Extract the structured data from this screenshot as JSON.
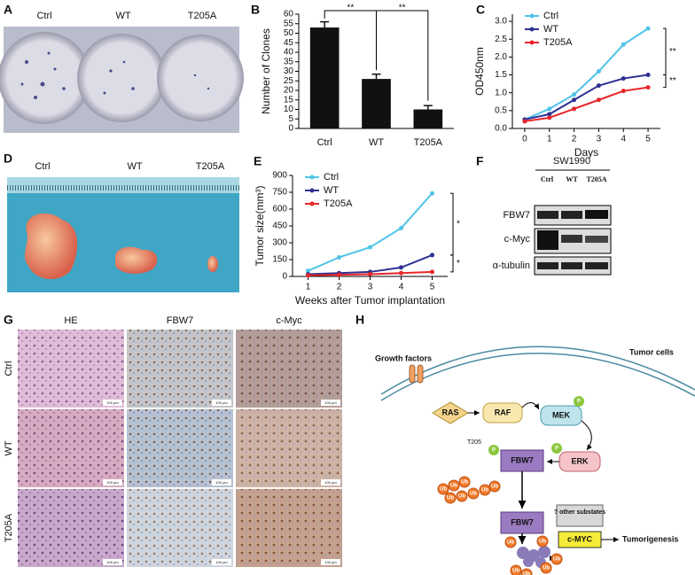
{
  "panels": [
    "A",
    "B",
    "C",
    "D",
    "E",
    "F",
    "G",
    "H"
  ],
  "photos": {
    "clonogenic": {
      "labels": [
        "Ctrl",
        "WT",
        "T205A"
      ]
    },
    "tumors": {
      "labels": [
        "Ctrl",
        "WT",
        "T205A"
      ]
    }
  },
  "chart_data": [
    {
      "type": "bar",
      "y_label": "Number of Clones",
      "categories": [
        "Ctrl",
        "WT",
        "T205A"
      ],
      "values": [
        53,
        26,
        10
      ],
      "errors": [
        3,
        2.5,
        2
      ],
      "color": "#111111",
      "ylim": [
        0,
        60
      ],
      "yticks": [
        0,
        5,
        10,
        15,
        20,
        25,
        30,
        35,
        40,
        45,
        50,
        55,
        60
      ],
      "annotations": [
        "**",
        "**"
      ]
    },
    {
      "type": "line",
      "y_label": "OD450nm",
      "x_label": "Days",
      "x": [
        0,
        1,
        2,
        3,
        4,
        5
      ],
      "xlim": [
        -0.5,
        5.5
      ],
      "xticks": [
        0,
        1,
        2,
        3,
        4,
        5
      ],
      "ylim": [
        0,
        3.2
      ],
      "yticks": [
        {
          "value": 0,
          "label": "0.0"
        },
        0.5,
        {
          "value": 1,
          "label": "1.0"
        },
        1.5,
        {
          "value": 2,
          "label": "2.0"
        },
        2.5,
        {
          "value": 3,
          "label": "3.0"
        }
      ],
      "series": [
        {
          "name": "Ctrl",
          "color": "#4fc3e8",
          "values": [
            0.25,
            0.55,
            0.95,
            1.6,
            2.35,
            2.8
          ]
        },
        {
          "name": "WT",
          "color": "#2e3192",
          "values": [
            0.25,
            0.4,
            0.8,
            1.2,
            1.4,
            1.5
          ]
        },
        {
          "name": "T205A",
          "color": "#e8262a",
          "values": [
            0.2,
            0.3,
            0.55,
            0.8,
            1.05,
            1.15
          ]
        }
      ],
      "legend": "upper-left",
      "annotations": [
        "**",
        "**"
      ]
    },
    {
      "type": "line",
      "y_label": "Tumor size(mm³)",
      "x_label": "Weeks after Tumor implantation",
      "x": [
        1,
        2,
        3,
        4,
        5
      ],
      "xlim": [
        0.5,
        5.5
      ],
      "xticks": [
        1,
        2,
        3,
        4,
        5
      ],
      "ylim": [
        0,
        900
      ],
      "yticks": [
        0,
        150,
        300,
        450,
        600,
        750,
        900
      ],
      "series": [
        {
          "name": "Ctrl",
          "color": "#4fc3e8",
          "values": [
            50,
            170,
            260,
            430,
            740
          ]
        },
        {
          "name": "WT",
          "color": "#2e3192",
          "values": [
            20,
            30,
            40,
            80,
            190
          ]
        },
        {
          "name": "T205A",
          "color": "#e8262a",
          "values": [
            10,
            15,
            20,
            30,
            40
          ]
        }
      ],
      "legend": "upper-left",
      "annotations": [
        "*",
        "*"
      ]
    }
  ],
  "western_blot": {
    "cell_line": "SW1990",
    "lanes": [
      "Ctrl",
      "WT",
      "T205A"
    ],
    "rows": [
      "FBW7",
      "c-Myc",
      "α-tubulin"
    ]
  },
  "ihc": {
    "columns": [
      "HE",
      "FBW7",
      "c-Myc"
    ],
    "rows": [
      "Ctrl",
      "WT",
      "T205A"
    ],
    "scale_bar": "100 μm"
  },
  "diagram": {
    "growth_factors": "Growth factors",
    "tumor_cells": "Tumor cells",
    "ras": "RAS",
    "raf": "RAF",
    "mek": "MEK",
    "erk": "ERK",
    "fbw7": "FBW7",
    "p": "P",
    "site": "T205",
    "ub": "Ub",
    "other": "? other substates",
    "cmyc": "c-MYC",
    "outcome": "Tumorigenesis"
  }
}
